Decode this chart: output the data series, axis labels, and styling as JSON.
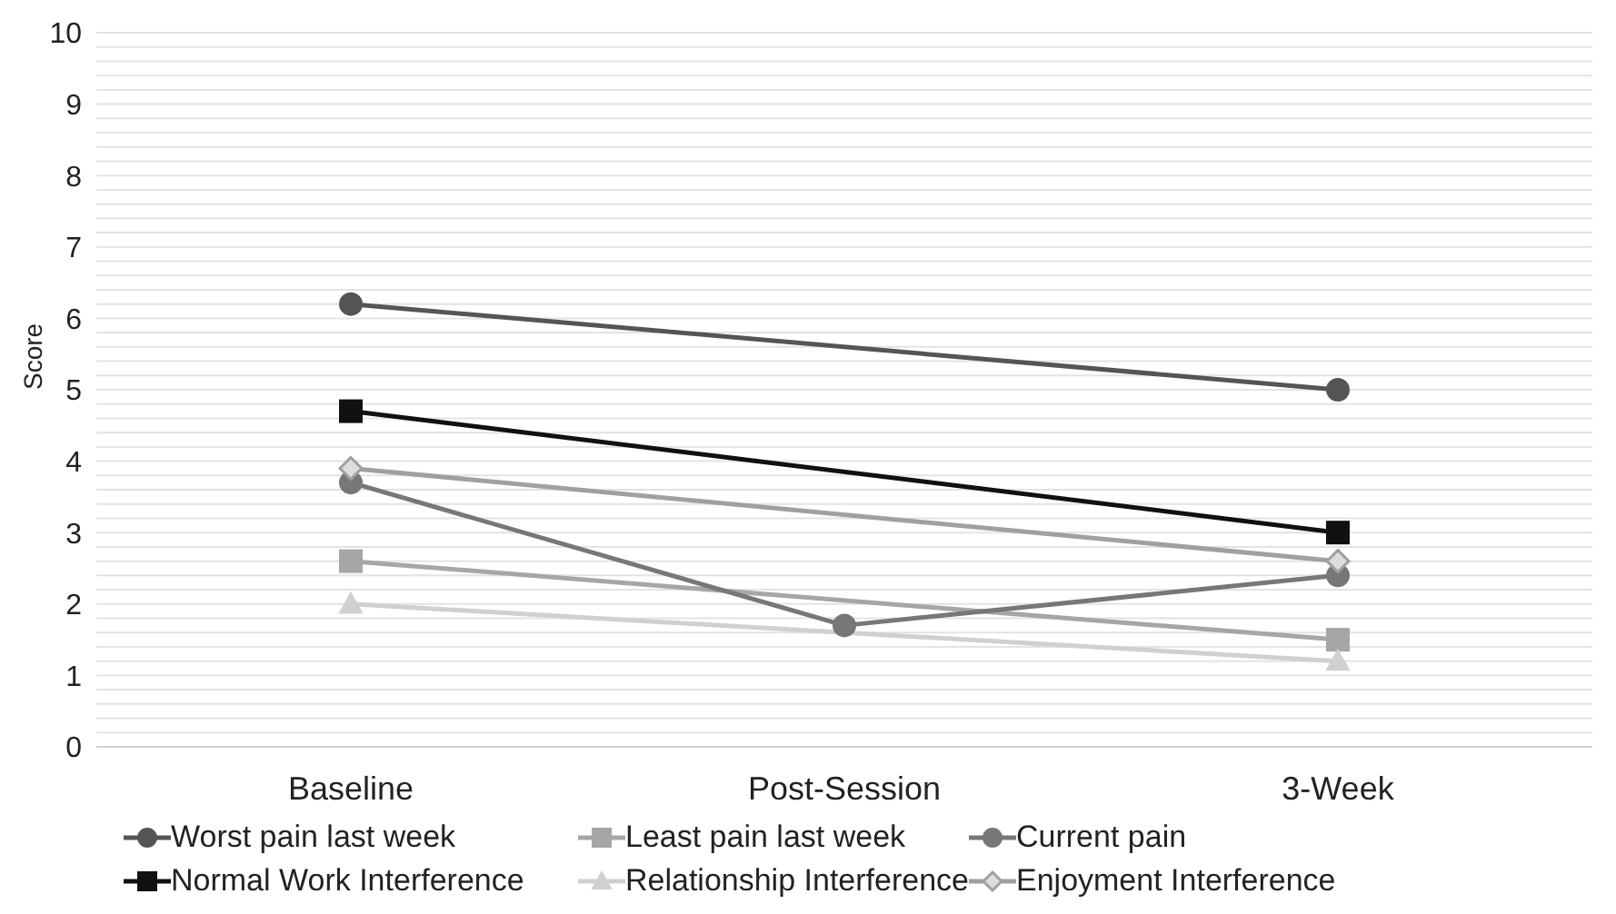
{
  "chart_data": {
    "type": "line",
    "ylabel": "Score",
    "categories": [
      "Baseline",
      "Post-Session",
      "3-Week"
    ],
    "ylim": [
      0,
      10
    ],
    "yticks": [
      0,
      {
        "value": 0.2,
        "label": null
      },
      {
        "value": 0.4,
        "label": null
      },
      {
        "value": 0.6,
        "label": null
      },
      {
        "value": 0.8,
        "label": null
      },
      1,
      {
        "value": 1.2,
        "label": null
      },
      {
        "value": 1.4,
        "label": null
      },
      {
        "value": 1.6,
        "label": null
      },
      {
        "value": 1.8,
        "label": null
      },
      2,
      {
        "value": 2.2,
        "label": null
      },
      {
        "value": 2.4,
        "label": null
      },
      {
        "value": 2.6,
        "label": null
      },
      {
        "value": 2.8,
        "label": null
      },
      3,
      {
        "value": 3.2,
        "label": null
      },
      {
        "value": 3.4,
        "label": null
      },
      {
        "value": 3.6,
        "label": null
      },
      {
        "value": 3.8,
        "label": null
      },
      4,
      {
        "value": 4.2,
        "label": null
      },
      {
        "value": 4.4,
        "label": null
      },
      {
        "value": 4.6,
        "label": null
      },
      {
        "value": 4.8,
        "label": null
      },
      5,
      {
        "value": 5.2,
        "label": null
      },
      {
        "value": 5.4,
        "label": null
      },
      {
        "value": 5.6,
        "label": null
      },
      {
        "value": 5.8,
        "label": null
      },
      6,
      {
        "value": 6.2,
        "label": null
      },
      {
        "value": 6.4,
        "label": null
      },
      {
        "value": 6.6,
        "label": null
      },
      {
        "value": 6.8,
        "label": null
      },
      7,
      {
        "value": 7.2,
        "label": null
      },
      {
        "value": 7.4,
        "label": null
      },
      {
        "value": 7.6,
        "label": null
      },
      {
        "value": 7.8,
        "label": null
      },
      8,
      {
        "value": 8.2,
        "label": null
      },
      {
        "value": 8.4,
        "label": null
      },
      {
        "value": 8.6,
        "label": null
      },
      {
        "value": 8.8,
        "label": null
      },
      9,
      {
        "value": 9.2,
        "label": null
      },
      {
        "value": 9.4,
        "label": null
      },
      {
        "value": 9.6,
        "label": null
      },
      {
        "value": 9.8,
        "label": null
      },
      10
    ],
    "grid": "y",
    "legend": "bottom",
    "series": [
      {
        "name": "Worst pain last week",
        "color": "#555555",
        "marker": "circle",
        "values": [
          6.2,
          null,
          5.0
        ]
      },
      {
        "name": "Least pain last week",
        "color": "#a6a6a6",
        "marker": "square",
        "values": [
          2.6,
          null,
          1.5
        ]
      },
      {
        "name": "Current pain",
        "color": "#777777",
        "marker": "circle",
        "values": [
          3.7,
          1.7,
          2.4
        ]
      },
      {
        "name": "Normal Work Interference",
        "color": "#111111",
        "marker": "square",
        "values": [
          4.7,
          null,
          3.0
        ]
      },
      {
        "name": "Relationship Interference",
        "color": "#d0d0d0",
        "marker": "triangle",
        "values": [
          2.0,
          null,
          1.2
        ]
      },
      {
        "name": "Enjoyment Interference",
        "color": "#a0a0a0",
        "marker": "diamond",
        "values": [
          3.9,
          null,
          2.6
        ]
      }
    ]
  }
}
